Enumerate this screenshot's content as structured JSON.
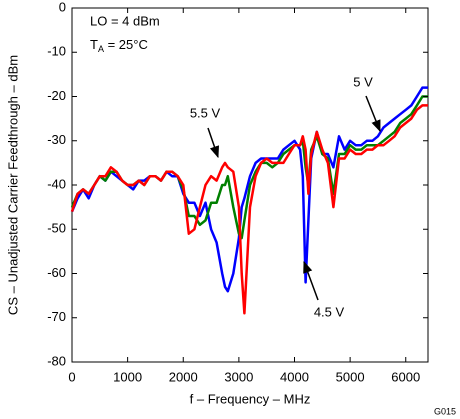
{
  "chart_data": {
    "type": "line",
    "xlabel": "f – Frequency – MHz",
    "ylabel": "CS – Unadjusted Carrier Feedthrough – dBm",
    "annotations": [
      {
        "text": "LO = 4 dBm"
      },
      {
        "text": "T",
        "sub": "A",
        "rest": " = 25°C"
      }
    ],
    "figure_code": "G015",
    "xlim": [
      0,
      6400
    ],
    "ylim": [
      -80,
      0
    ],
    "xticks": [
      0,
      1000,
      2000,
      3000,
      4000,
      5000,
      6000
    ],
    "yticks": [
      0,
      -10,
      -20,
      -30,
      -40,
      -50,
      -60,
      -70,
      -80
    ],
    "grid": false,
    "x": [
      0,
      100,
      200,
      300,
      400,
      500,
      600,
      700,
      800,
      900,
      1000,
      1100,
      1200,
      1300,
      1400,
      1500,
      1600,
      1700,
      1800,
      1900,
      2000,
      2100,
      2200,
      2300,
      2400,
      2500,
      2600,
      2700,
      2750,
      2800,
      2900,
      3000,
      3050,
      3100,
      3200,
      3300,
      3400,
      3500,
      3600,
      3700,
      3800,
      3900,
      4000,
      4100,
      4150,
      4200,
      4250,
      4300,
      4400,
      4500,
      4600,
      4700,
      4800,
      4900,
      5000,
      5100,
      5200,
      5300,
      5400,
      5500,
      5600,
      5700,
      5800,
      5900,
      6000,
      6100,
      6200,
      6300,
      6400
    ],
    "series": [
      {
        "name": "5.5 V",
        "color": "#ff0000",
        "values": [
          -46,
          -42,
          -41,
          -42,
          -40,
          -38,
          -38,
          -36,
          -37,
          -39,
          -40,
          -40,
          -39,
          -40,
          -38,
          -38,
          -39,
          -37,
          -37,
          -38,
          -40,
          -51,
          -50,
          -45,
          -40,
          -38,
          -39,
          -36,
          -35,
          -36,
          -37,
          -45,
          -60,
          -69,
          -45,
          -38,
          -35,
          -34,
          -35,
          -35,
          -35,
          -33,
          -31,
          -31,
          -29,
          -32,
          -42,
          -33,
          -28,
          -32,
          -35,
          -45,
          -34,
          -34,
          -32,
          -33,
          -33,
          -32,
          -32,
          -31,
          -31,
          -30,
          -29,
          -27,
          -26,
          -25,
          -23,
          -22,
          -22
        ]
      },
      {
        "name": "5 V",
        "color": "#008000",
        "values": [
          -45,
          -42,
          -41,
          -42,
          -40,
          -38,
          -39,
          -37,
          -37,
          -39,
          -40,
          -40,
          -39,
          -40,
          -38,
          -38,
          -39,
          -37,
          -37,
          -38,
          -41,
          -47,
          -47,
          -49,
          -48,
          -44,
          -44,
          -40,
          -40,
          -38,
          -45,
          -51,
          -52,
          -48,
          -40,
          -37,
          -35,
          -35,
          -36,
          -35,
          -33,
          -32,
          -31,
          -31,
          -30,
          -36,
          -40,
          -32,
          -29,
          -33,
          -34,
          -42,
          -33,
          -33,
          -31,
          -32,
          -32,
          -31,
          -31,
          -31,
          -30,
          -29,
          -28,
          -26,
          -25,
          -24,
          -22,
          -20,
          -20
        ]
      },
      {
        "name": "4.5 V",
        "color": "#0000ff",
        "values": [
          -46,
          -43,
          -41,
          -43,
          -40,
          -38,
          -39,
          -37,
          -38,
          -39,
          -40,
          -41,
          -39,
          -39,
          -38,
          -38,
          -39,
          -37,
          -38,
          -38,
          -42,
          -44,
          -44,
          -47,
          -44,
          -50,
          -53,
          -60,
          -63,
          -64,
          -60,
          -52,
          -45,
          -43,
          -38,
          -35,
          -34,
          -34,
          -34,
          -34,
          -32,
          -31,
          -30,
          -32,
          -38,
          -62,
          -48,
          -34,
          -28,
          -33,
          -33,
          -36,
          -29,
          -32,
          -30,
          -31,
          -31,
          -30,
          -30,
          -29,
          -27,
          -26,
          -25,
          -24,
          -23,
          -22,
          -20,
          -18,
          -18
        ]
      }
    ]
  }
}
